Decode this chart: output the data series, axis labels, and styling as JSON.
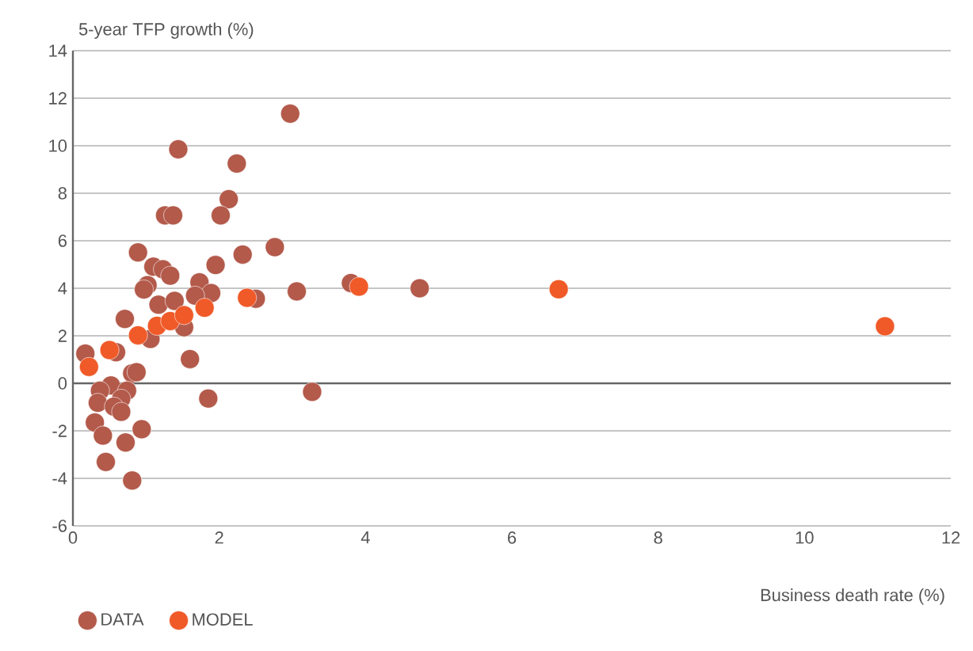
{
  "chart_data": {
    "type": "scatter",
    "xlabel": "Business death rate (%)",
    "ylabel": "5-year TFP growth (%)",
    "xlim": [
      0,
      12
    ],
    "ylim": [
      -6,
      14
    ],
    "xticks": [
      0,
      2,
      4,
      6,
      8,
      10,
      12
    ],
    "yticks": [
      -6,
      -4,
      -2,
      0,
      2,
      4,
      6,
      8,
      10,
      12,
      14
    ],
    "grid": "y",
    "legend": "bottom left",
    "marker": "circle",
    "series": [
      {
        "name": "DATA",
        "color": "#b35a4b",
        "x": [
          1.44,
          2.24,
          2.13,
          2.02,
          1.26,
          1.37,
          2.32,
          0.89,
          1.95,
          1.1,
          1.23,
          1.33,
          1.02,
          0.97,
          1.73,
          1.89,
          1.67,
          1.17,
          1.39,
          0.71,
          1.52,
          1.06,
          1.6,
          0.17,
          0.59,
          0.81,
          0.87,
          1.85,
          0.52,
          0.74,
          0.37,
          0.66,
          0.34,
          0.56,
          0.3,
          0.66,
          0.41,
          0.94,
          0.72,
          0.45,
          0.81,
          2.97,
          2.76,
          3.06,
          2.5,
          3.8,
          3.27,
          4.74
        ],
        "values": [
          9.85,
          9.25,
          7.75,
          7.07,
          7.07,
          7.07,
          5.42,
          5.51,
          4.98,
          4.91,
          4.8,
          4.53,
          4.13,
          3.95,
          4.25,
          3.8,
          3.69,
          3.31,
          3.47,
          2.71,
          2.36,
          1.87,
          1.02,
          1.25,
          1.31,
          0.42,
          0.47,
          -0.64,
          -0.09,
          -0.31,
          -0.31,
          -0.65,
          -0.82,
          -0.98,
          -1.65,
          -1.2,
          -2.2,
          -1.93,
          -2.49,
          -3.31,
          -4.09,
          11.35,
          5.73,
          3.87,
          3.56,
          4.22,
          -0.36,
          4.0
        ]
      },
      {
        "name": "MODEL",
        "color": "#f05a28",
        "x": [
          0.22,
          0.5,
          0.89,
          1.15,
          1.33,
          1.52,
          1.8,
          2.38,
          3.91,
          6.64,
          11.1
        ],
        "values": [
          0.69,
          1.4,
          2.02,
          2.42,
          2.62,
          2.87,
          3.18,
          3.6,
          4.07,
          3.96,
          2.4
        ]
      }
    ]
  }
}
